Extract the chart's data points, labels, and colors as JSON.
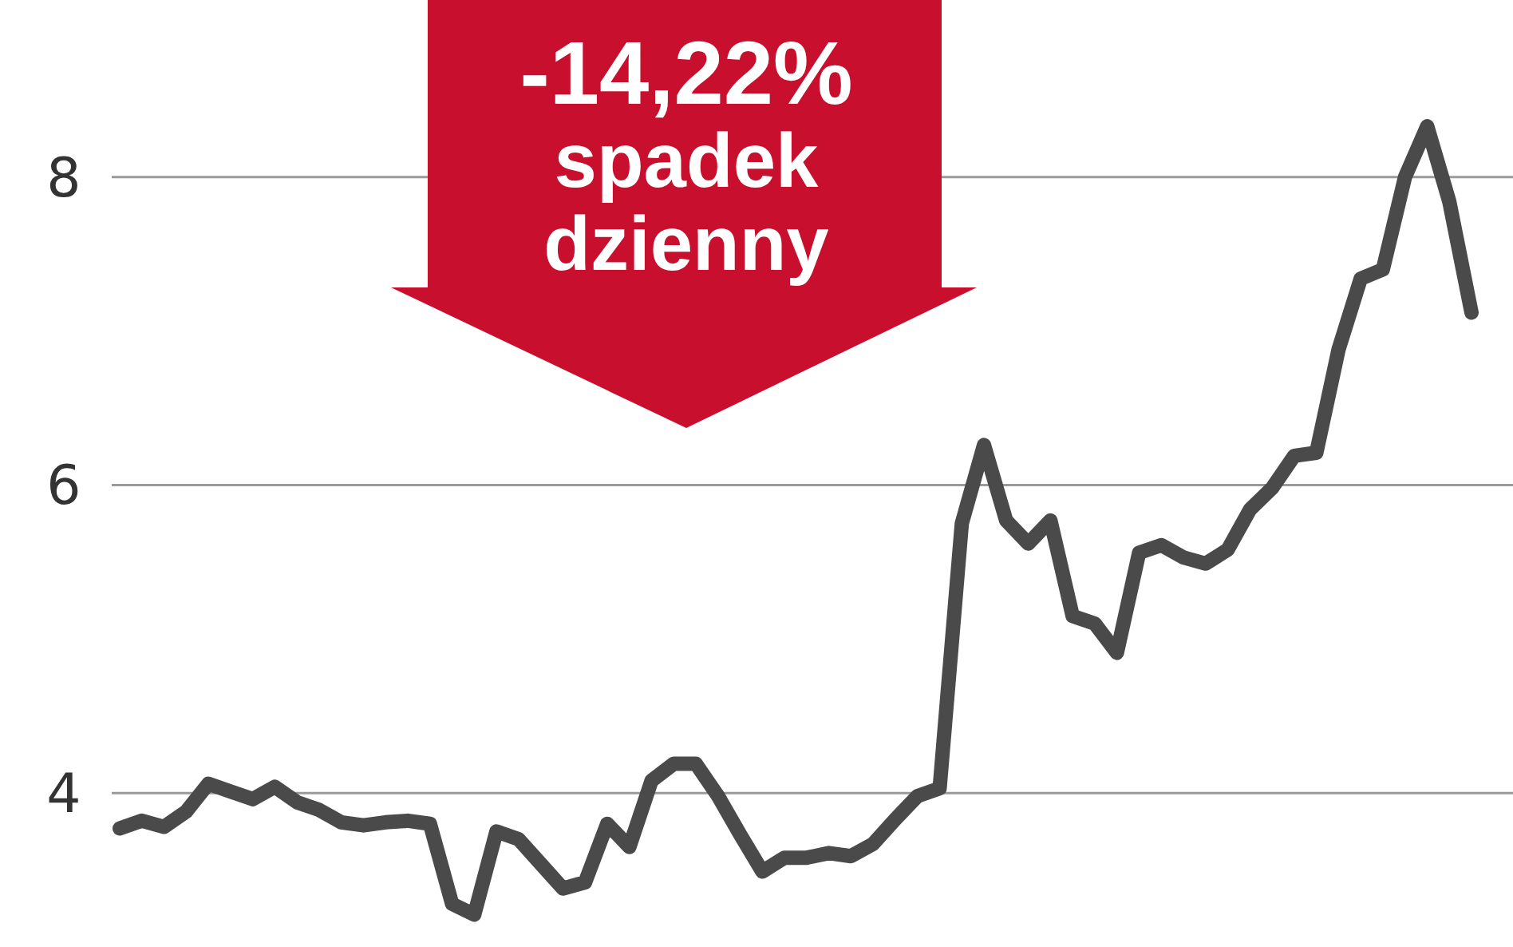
{
  "chart_data": {
    "type": "line",
    "categories": [
      null,
      null,
      null,
      null,
      null,
      null,
      null,
      null,
      null,
      null,
      null,
      null,
      null,
      null,
      null,
      null,
      null,
      null,
      null,
      null,
      null,
      null,
      null,
      null,
      null,
      null,
      null,
      null,
      null,
      null,
      null,
      null,
      null,
      null,
      null,
      null,
      null,
      null,
      null,
      null,
      null,
      null,
      null,
      null,
      null,
      null,
      null,
      null,
      null,
      null,
      null,
      null,
      null,
      null,
      null,
      null,
      null,
      null,
      null,
      null,
      null,
      null
    ],
    "series": [
      {
        "color": "#4a4a4a",
        "values": [
          3.77,
          3.82,
          3.78,
          3.88,
          4.06,
          4.01,
          3.96,
          4.04,
          3.94,
          3.89,
          3.81,
          3.79,
          3.81,
          3.82,
          3.8,
          3.28,
          3.21,
          3.75,
          3.7,
          3.54,
          3.38,
          3.42,
          3.8,
          3.65,
          4.08,
          4.19,
          4.19,
          3.98,
          3.73,
          3.49,
          3.58,
          3.58,
          3.61,
          3.59,
          3.67,
          3.83,
          3.98,
          4.03,
          5.75,
          6.26,
          5.77,
          5.62,
          5.77,
          5.15,
          5.1,
          4.91,
          5.56,
          5.61,
          5.53,
          5.49,
          5.58,
          5.84,
          5.98,
          6.19,
          6.21,
          6.88,
          7.34,
          7.4,
          8.0,
          8.33,
          7.84,
          7.12
        ]
      }
    ],
    "ylim": [
      3,
      9.15
    ],
    "yticks": [
      4,
      6,
      8
    ],
    "grid": "y",
    "tick_labels": "y",
    "marker": "none",
    "line_style": "solid",
    "annotations": [
      "-14,22%\nspadek\ndzienny"
    ]
  }
}
